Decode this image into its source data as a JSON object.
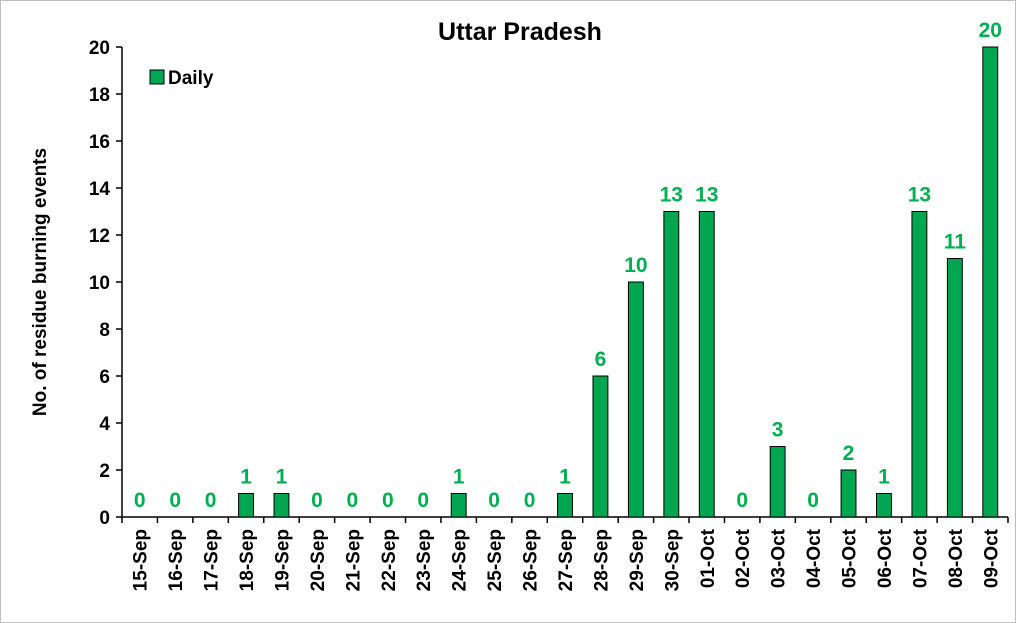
{
  "chart_data": {
    "type": "bar",
    "title": "Uttar Pradesh",
    "y_label": "No. of residue burning events",
    "categories": [
      "15-Sep",
      "16-Sep",
      "17-Sep",
      "18-Sep",
      "19-Sep",
      "20-Sep",
      "21-Sep",
      "22-Sep",
      "23-Sep",
      "24-Sep",
      "25-Sep",
      "26-Sep",
      "27-Sep",
      "28-Sep",
      "29-Sep",
      "30-Sep",
      "01-Oct",
      "02-Oct",
      "03-Oct",
      "04-Oct",
      "05-Oct",
      "06-Oct",
      "07-Oct",
      "08-Oct",
      "09-Oct"
    ],
    "series": [
      {
        "name": "Daily",
        "color": "#00a650",
        "values": [
          0,
          0,
          0,
          1,
          1,
          0,
          0,
          0,
          0,
          1,
          0,
          0,
          1,
          6,
          10,
          13,
          13,
          0,
          3,
          0,
          2,
          1,
          13,
          11,
          20
        ]
      }
    ],
    "label_color": "#00b050",
    "ylim": [
      0,
      20
    ],
    "yticks": [
      0,
      2,
      4,
      6,
      8,
      10,
      12,
      14,
      16,
      18,
      20
    ],
    "grid": false,
    "legend": "top-left"
  }
}
